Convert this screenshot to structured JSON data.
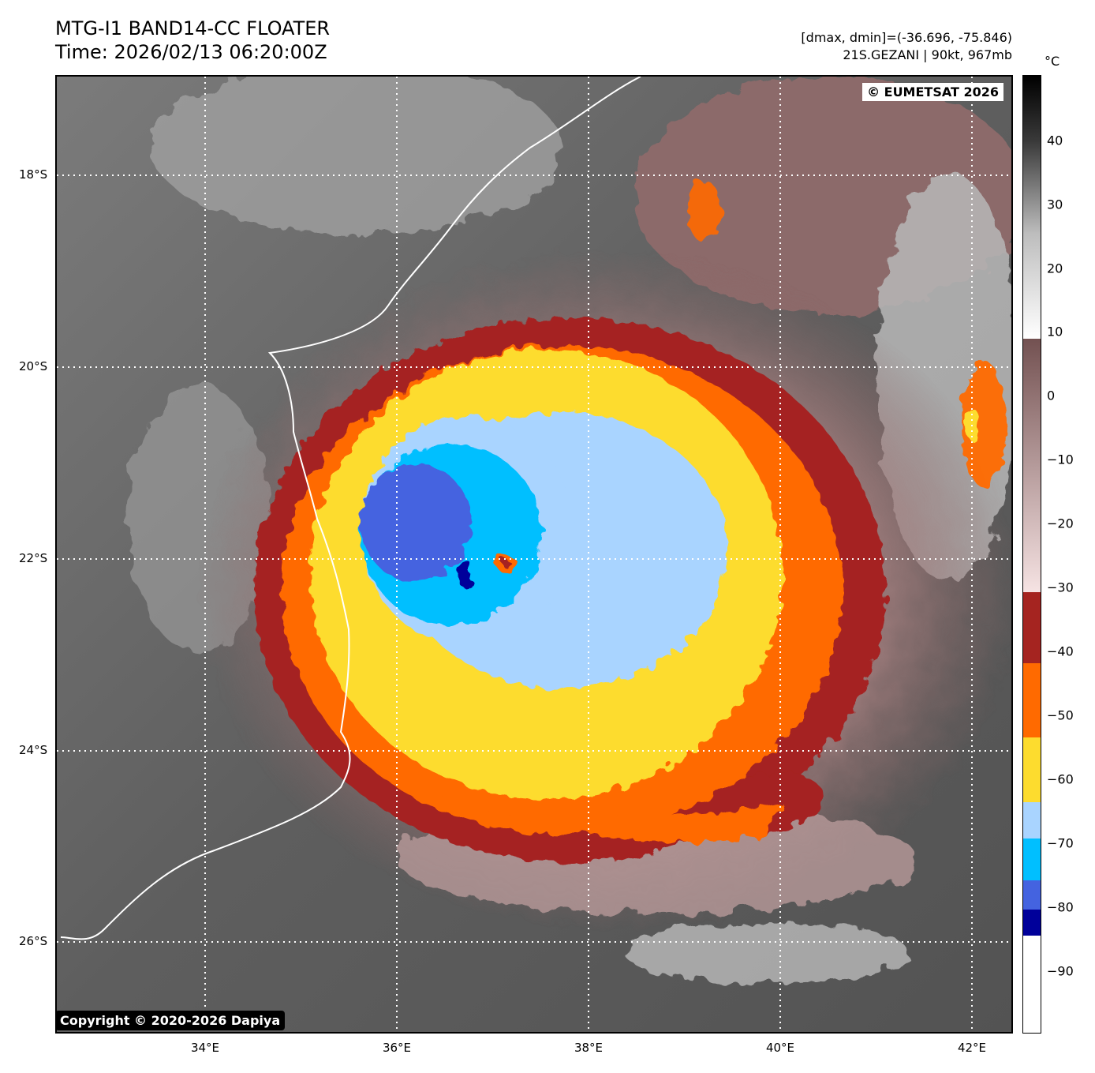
{
  "header": {
    "title_line1": "MTG-I1 BAND14-CC FLOATER",
    "title_line2": "Time: 2026/02/13 06:20:00Z",
    "stats_line": "[dmax, dmin]=(-36.696, -75.846)",
    "storm_line": "21S.GEZANI | 90kt, 967mb"
  },
  "map": {
    "eumetsat_credit": "© EUMETSAT 2026",
    "copyright": "Copyright © 2020-2026 Dapiya",
    "lat_labels": [
      "18°S",
      "20°S",
      "22°S",
      "24°S",
      "26°S"
    ],
    "lon_labels": [
      "34°E",
      "36°E",
      "38°E",
      "40°E",
      "42°E"
    ],
    "graticule": "dotted white"
  },
  "colorbar": {
    "unit": "°C",
    "ticks": [
      "40",
      "30",
      "20",
      "10",
      "0",
      "−10",
      "−20",
      "−30",
      "−40",
      "−50",
      "−60",
      "−70",
      "−80",
      "−90"
    ],
    "enhancement_colors": {
      "-30_to_-40": "#a52420",
      "-40_to_-50": "#ff6a00",
      "-50_to_-60": "#fddc2e",
      "-60_to_-65": "#a9d4ff",
      "-65_to_-75": "#00bfff",
      "-75_to_-80": "#4463e0",
      "-80_to_-84": "#00009a",
      "below_-84": "#ffffff"
    },
    "above_minus30": "grayscale with brown tint 10 to -30"
  }
}
